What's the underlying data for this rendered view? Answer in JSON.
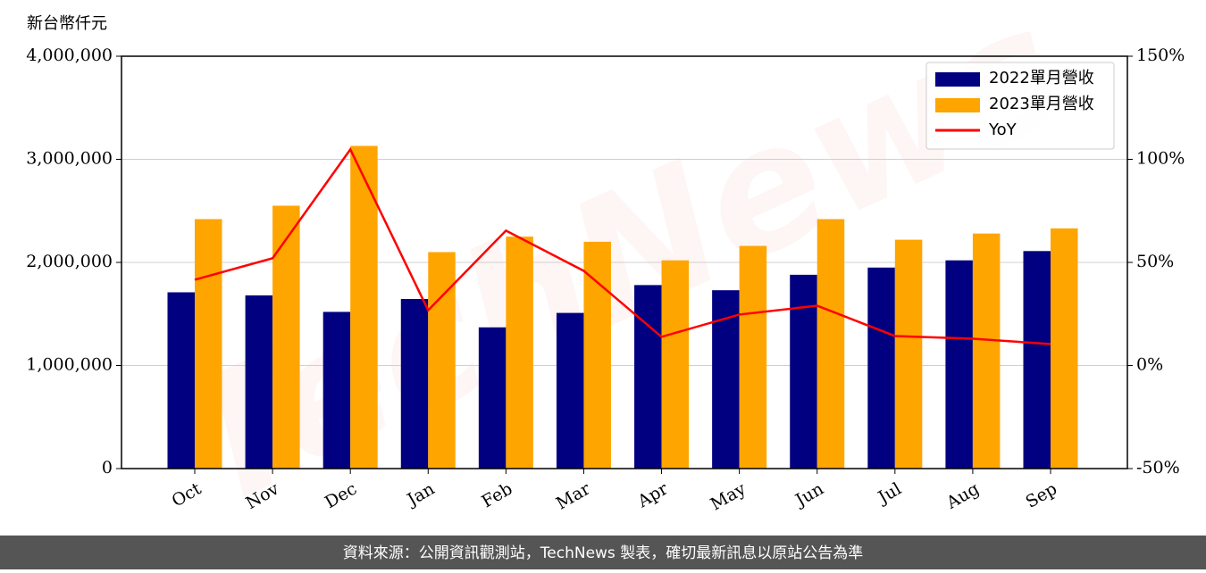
{
  "chart_data": {
    "type": "bar-line",
    "y_label": "新台幣仟元",
    "watermark": "TechNews",
    "source": "資料來源：公開資訊觀測站，TechNews 製表，確切最新訊息以原站公告為準",
    "categories": [
      "Oct",
      "Nov",
      "Dec",
      "Jan",
      "Feb",
      "Mar",
      "Apr",
      "May",
      "Jun",
      "Jul",
      "Aug",
      "Sep"
    ],
    "series": [
      {
        "name": "2022單月營收",
        "type": "bar",
        "color": "#000080",
        "values": [
          1710000,
          1680000,
          1520000,
          1645000,
          1370000,
          1510000,
          1780000,
          1730000,
          1880000,
          1950000,
          2020000,
          2110000
        ]
      },
      {
        "name": "2023單月營收",
        "type": "bar",
        "color": "#ffa500",
        "values": [
          2420000,
          2550000,
          3130000,
          2100000,
          2250000,
          2200000,
          2020000,
          2160000,
          2420000,
          2220000,
          2280000,
          2330000
        ]
      },
      {
        "name": "YoY",
        "type": "line",
        "axis": "y2",
        "color": "#ff0000",
        "values": [
          41.6,
          52,
          104.8,
          26.8,
          65.4,
          45.9,
          13.9,
          24.7,
          29,
          14.3,
          13,
          10.4
        ]
      }
    ],
    "ylim": [
      0,
      4000000
    ],
    "yticks": [
      0,
      {
        "value": 1000000,
        "label": "1,000,000"
      },
      {
        "value": 2000000,
        "label": "2,000,000"
      },
      {
        "value": 3000000,
        "label": "3,000,000"
      },
      {
        "value": 4000000,
        "label": "4,000,000"
      }
    ],
    "y2lim": [
      -50,
      150
    ],
    "y2ticks": [
      {
        "value": -50,
        "label": "-50%"
      },
      {
        "value": 0,
        "label": "0%"
      },
      {
        "value": 50,
        "label": "50%"
      },
      {
        "value": 100,
        "label": "100%"
      },
      {
        "value": 150,
        "label": "150%"
      }
    ],
    "grid": true,
    "legend": "upper right"
  }
}
